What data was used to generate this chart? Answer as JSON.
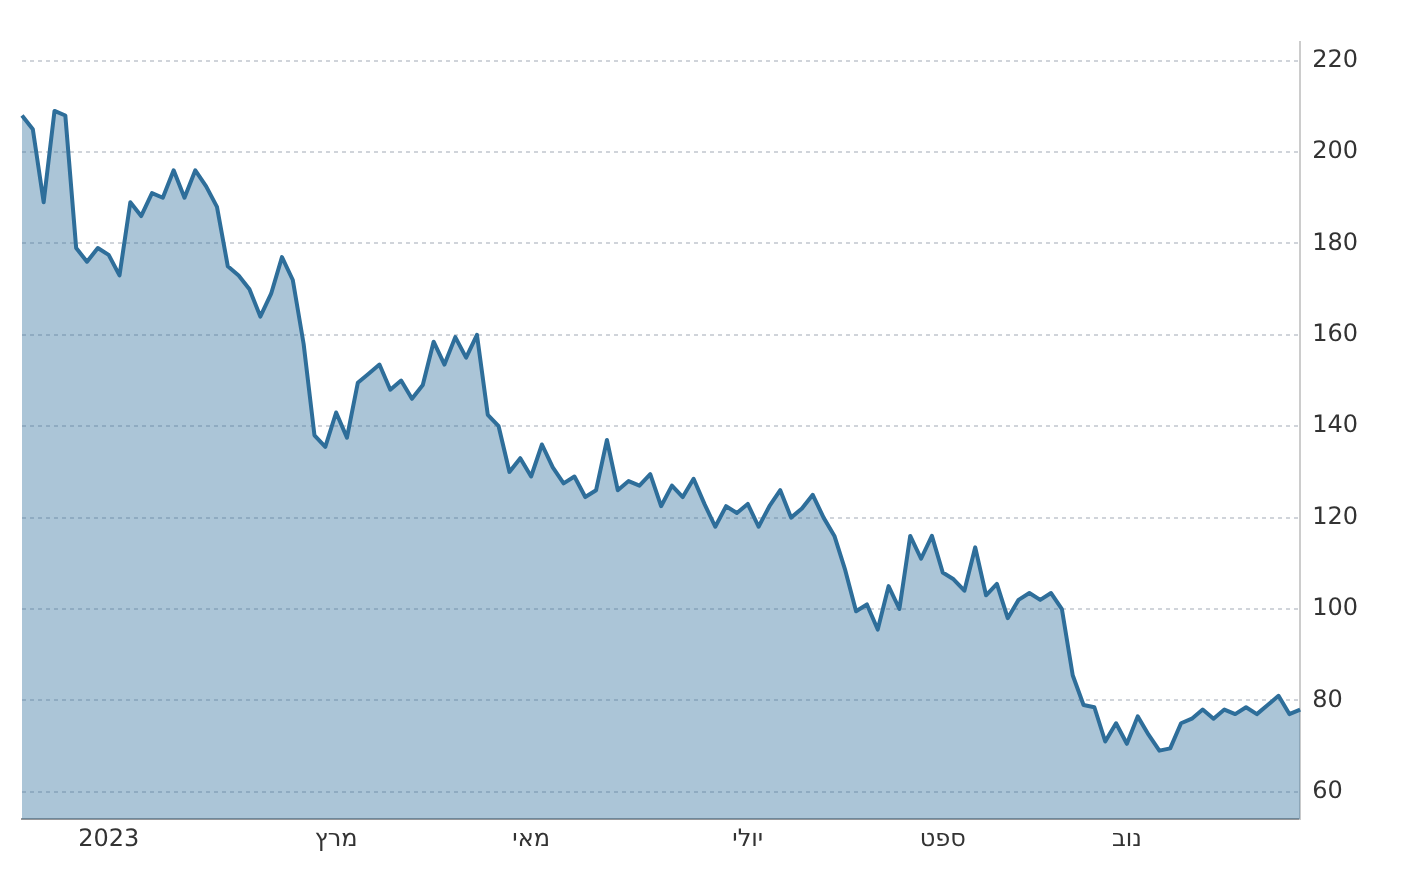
{
  "chart_data": {
    "type": "area",
    "categories": [
      null,
      null,
      null,
      null,
      null,
      null,
      null,
      null,
      "2023",
      null,
      null,
      null,
      null,
      null,
      null,
      null,
      null,
      null,
      null,
      null,
      null,
      null,
      null,
      null,
      null,
      null,
      null,
      null,
      null,
      "מרץ",
      null,
      null,
      null,
      null,
      null,
      null,
      null,
      null,
      null,
      null,
      null,
      null,
      null,
      null,
      null,
      null,
      null,
      "מאי",
      null,
      null,
      null,
      null,
      null,
      null,
      null,
      null,
      null,
      null,
      null,
      null,
      null,
      null,
      null,
      null,
      null,
      null,
      null,
      "יולי",
      null,
      null,
      null,
      null,
      null,
      null,
      null,
      null,
      null,
      null,
      null,
      null,
      null,
      null,
      null,
      null,
      null,
      "ספט",
      null,
      null,
      null,
      null,
      null,
      null,
      null,
      null,
      null,
      null,
      null,
      null,
      null,
      null,
      null,
      null,
      "נוב",
      null,
      null,
      null,
      null,
      null,
      null,
      null,
      null,
      null,
      null,
      null,
      null,
      null,
      null,
      null,
      null
    ],
    "series": [
      {
        "color": "#2e6e9a",
        "values": [
          208,
          205,
          189,
          209,
          208,
          179,
          176,
          179,
          177.5,
          173,
          189,
          186,
          191,
          190,
          196,
          190,
          196,
          192.5,
          188,
          175,
          173,
          170,
          164,
          169,
          177,
          172,
          158,
          138,
          135.5,
          143,
          137.5,
          149.5,
          151.5,
          153.5,
          148,
          150,
          146,
          149,
          158.5,
          153.5,
          159.5,
          155,
          160,
          142.5,
          140,
          130,
          133,
          129,
          136,
          131,
          127.5,
          129,
          124.5,
          126,
          137,
          126,
          128,
          127,
          129.5,
          122.5,
          127,
          124.5,
          128.5,
          123,
          118,
          122.5,
          121,
          123,
          118,
          122.5,
          126,
          120,
          122,
          125,
          120,
          116,
          108.5,
          99.5,
          101,
          95.5,
          105,
          100,
          116,
          111,
          116,
          108,
          106.5,
          104,
          113.5,
          103,
          105.5,
          98,
          102,
          103.5,
          102,
          103.5,
          100,
          85.5,
          79,
          78.5,
          71,
          75,
          70.5,
          76.5,
          72.5,
          69,
          69.5,
          75,
          76,
          78,
          76,
          78,
          77,
          78.5,
          77,
          79,
          81,
          77,
          78
        ]
      }
    ],
    "ylim": [
      54,
      224
    ],
    "yticks": [
      60,
      80,
      100,
      120,
      140,
      160,
      180,
      200,
      220
    ],
    "grid": "y",
    "legend": false
  }
}
